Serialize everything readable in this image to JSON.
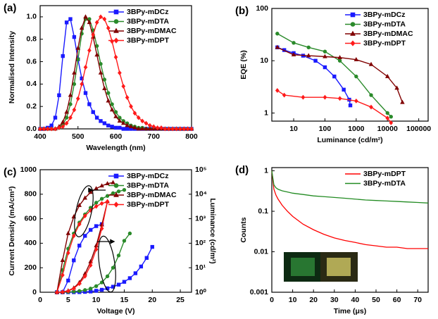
{
  "chart_data": [
    {
      "type": "line",
      "panel": "(a)",
      "x_label": "Wavelength (nm)",
      "y_label": "Normalised Intensity",
      "xlim": [
        400,
        800
      ],
      "xticks": [
        400,
        500,
        600,
        700,
        800
      ],
      "ylim": [
        0,
        1.1
      ],
      "yticks": [
        {
          "value": 0,
          "label": "0.0"
        },
        0.2,
        0.4,
        0.6,
        0.8,
        {
          "value": 1,
          "label": "1.0"
        }
      ],
      "legend": "upper right",
      "x": [
        400,
        410,
        420,
        430,
        440,
        450,
        460,
        470,
        480,
        490,
        500,
        510,
        520,
        530,
        540,
        550,
        560,
        570,
        580,
        590,
        600,
        610,
        620,
        630,
        640,
        650,
        660,
        670,
        680,
        690,
        700,
        710,
        720,
        730,
        740,
        750,
        760,
        770,
        780,
        790,
        800
      ],
      "series": [
        {
          "name": "3BPy-mDCz",
          "color": "#1a1aff",
          "marker": "square",
          "values": [
            0,
            0,
            0.01,
            0.03,
            0.1,
            0.3,
            0.65,
            0.95,
            0.98,
            0.82,
            0.62,
            0.45,
            0.32,
            0.22,
            0.15,
            0.1,
            0.07,
            0.05,
            0.03,
            0.02,
            0.01,
            0.01,
            0,
            0,
            0,
            0,
            0,
            0,
            0,
            0,
            0,
            0,
            0,
            0,
            0,
            0,
            0,
            0,
            0,
            0,
            0
          ]
        },
        {
          "name": "3BPy-mDTA",
          "color": "#2a8a2a",
          "marker": "circle",
          "values": [
            0,
            0,
            0,
            0,
            0,
            0.01,
            0.04,
            0.1,
            0.22,
            0.4,
            0.62,
            0.85,
            0.98,
            0.98,
            0.88,
            0.74,
            0.58,
            0.44,
            0.32,
            0.22,
            0.15,
            0.1,
            0.07,
            0.05,
            0.03,
            0.02,
            0.01,
            0.01,
            0,
            0,
            0,
            0,
            0,
            0,
            0,
            0,
            0,
            0,
            0,
            0,
            0
          ]
        },
        {
          "name": "3BPy-mDMAC",
          "color": "#800000",
          "marker": "triangle",
          "values": [
            0,
            0,
            0,
            0,
            0,
            0.02,
            0.06,
            0.15,
            0.3,
            0.5,
            0.72,
            0.9,
            1,
            0.95,
            0.82,
            0.66,
            0.5,
            0.36,
            0.25,
            0.17,
            0.11,
            0.07,
            0.05,
            0.03,
            0.02,
            0.01,
            0,
            0,
            0,
            0,
            0,
            0,
            0,
            0,
            0,
            0,
            0,
            0,
            0,
            0,
            0
          ]
        },
        {
          "name": "3BPy-mDPT",
          "color": "#ff1a1a",
          "marker": "diamond",
          "values": [
            0,
            0,
            0,
            0,
            0,
            0.01,
            0.02,
            0.05,
            0.1,
            0.17,
            0.27,
            0.4,
            0.55,
            0.7,
            0.84,
            0.95,
            1,
            0.98,
            0.9,
            0.78,
            0.64,
            0.5,
            0.38,
            0.28,
            0.2,
            0.14,
            0.1,
            0.07,
            0.05,
            0.03,
            0.02,
            0.01,
            0.01,
            0,
            0,
            0,
            0,
            0,
            0,
            0,
            0
          ]
        }
      ]
    },
    {
      "type": "line",
      "panel": "(b)",
      "x_label": "Luminance (cd/m²)",
      "y_label": "EQE (%)",
      "xlog": true,
      "ylog": true,
      "xlim": [
        2,
        200000
      ],
      "xticks": [
        10,
        100,
        1000,
        10000,
        100000
      ],
      "ylim": [
        0.7,
        100
      ],
      "yticks": [
        1,
        10,
        100
      ],
      "legend": "upper right",
      "series": [
        {
          "name": "3BPy-mDCz",
          "color": "#1a1aff",
          "marker": "square",
          "x": [
            3,
            5,
            10,
            20,
            50,
            100,
            200,
            400,
            600,
            650
          ],
          "values": [
            18,
            16,
            14,
            12.5,
            10,
            7.5,
            5,
            2.8,
            1.8,
            1.4
          ]
        },
        {
          "name": "3BPy-mDTA",
          "color": "#2a8a2a",
          "marker": "circle",
          "x": [
            3,
            10,
            30,
            100,
            300,
            1000,
            3000,
            10000,
            13000
          ],
          "values": [
            33,
            22,
            18,
            15,
            10,
            5,
            2.2,
            1,
            0.85
          ]
        },
        {
          "name": "3BPy-mDMAC",
          "color": "#800000",
          "marker": "triangle",
          "x": [
            3,
            10,
            30,
            100,
            300,
            1000,
            3000,
            10000,
            20000,
            30000
          ],
          "values": [
            18,
            13,
            12.5,
            12,
            11.5,
            10.5,
            8.5,
            5,
            3,
            1.6
          ]
        },
        {
          "name": "3BPy-mDPT",
          "color": "#ff1a1a",
          "marker": "diamond",
          "x": [
            3,
            5,
            20,
            100,
            300,
            1000,
            3000,
            10000,
            13000
          ],
          "values": [
            2.7,
            2.2,
            2,
            2,
            1.9,
            1.7,
            1.3,
            0.8,
            0.65
          ]
        }
      ]
    },
    {
      "type": "line",
      "panel": "(c)",
      "x_label": "Voltage (V)",
      "y_label": "Current Density (mA/cm²)",
      "y2_label": "Luminance (cd/m²)",
      "xlim": [
        0,
        27
      ],
      "xticks": [
        0,
        5,
        10,
        15,
        20,
        25
      ],
      "ylim": [
        0,
        1000
      ],
      "yticks": [
        0,
        200,
        400,
        600,
        800,
        1000
      ],
      "y2log": true,
      "y2lim": [
        1,
        100000
      ],
      "y2ticks": [
        {
          "value": 1,
          "label": "10⁰"
        },
        {
          "value": 10,
          "label": "10¹"
        },
        {
          "value": 100,
          "label": "10²"
        },
        {
          "value": 1000,
          "label": "10³"
        },
        {
          "value": 10000,
          "label": "10⁴"
        },
        {
          "value": 100000,
          "label": "10⁵"
        }
      ],
      "legend": "upper right",
      "series": [
        {
          "name": "3BPy-mDCz",
          "color": "#1a1aff",
          "marker": "square",
          "x": [
            3,
            4,
            5,
            6,
            7,
            8,
            9,
            10,
            11,
            12,
            13,
            14,
            15,
            16,
            17,
            18,
            19,
            20
          ],
          "values": [
            0,
            0,
            0.1,
            0.5,
            1,
            3,
            6,
            12,
            20,
            32,
            45,
            62,
            85,
            115,
            155,
            210,
            280,
            370
          ],
          "luminance": [
            1,
            1,
            3,
            20,
            80,
            200,
            350,
            500,
            600,
            null,
            null,
            null,
            null,
            null,
            null,
            null,
            null,
            null
          ]
        },
        {
          "name": "3BPy-mDTA",
          "color": "#2a8a2a",
          "marker": "circle",
          "x": [
            3,
            4,
            5,
            6,
            7,
            8,
            9,
            10,
            11,
            12,
            13,
            14,
            15,
            16
          ],
          "values": [
            0,
            0.5,
            2,
            5,
            10,
            18,
            30,
            50,
            80,
            130,
            200,
            300,
            420,
            480
          ],
          "luminance": [
            1,
            8,
            60,
            250,
            700,
            1500,
            2800,
            4500,
            6500,
            8500,
            11000,
            13000,
            15000,
            null
          ]
        },
        {
          "name": "3BPy-mDMAC",
          "color": "#800000",
          "marker": "triangle",
          "x": [
            3,
            4,
            5,
            6,
            7,
            8,
            9,
            10,
            11,
            12,
            13
          ],
          "values": [
            0,
            3,
            12,
            35,
            80,
            150,
            250,
            380,
            550,
            740,
            null
          ],
          "luminance": [
            1,
            20,
            250,
            1200,
            3500,
            7000,
            12000,
            17000,
            22000,
            27000,
            30000
          ]
        },
        {
          "name": "3BPy-mDPT",
          "color": "#ff1a1a",
          "marker": "diamond",
          "x": [
            3,
            4,
            5,
            6,
            7,
            8,
            9,
            10,
            11,
            12
          ],
          "values": [
            0,
            2,
            10,
            30,
            70,
            130,
            220,
            350,
            520,
            740
          ],
          "luminance": [
            1,
            5,
            40,
            200,
            600,
            1300,
            2200,
            3200,
            4200,
            5000
          ]
        }
      ]
    },
    {
      "type": "line",
      "panel": "(d)",
      "x_label": "Time (μs)",
      "y_label": "Counts",
      "ylog": true,
      "xlim": [
        0,
        75
      ],
      "xticks": [
        0,
        10,
        20,
        30,
        40,
        50,
        60,
        70
      ],
      "ylim": [
        0.001,
        1.2
      ],
      "yticks": [
        0.001,
        0.01,
        0.1,
        1
      ],
      "legend": "upper right",
      "x": [
        0,
        1,
        2,
        3,
        5,
        7.5,
        10,
        15,
        20,
        25,
        30,
        35,
        40,
        45,
        50,
        55,
        60,
        65,
        70,
        75
      ],
      "series": [
        {
          "name": "3BPy-mDPT",
          "color": "#ff0000",
          "marker": "none",
          "values": [
            1,
            0.35,
            0.25,
            0.2,
            0.14,
            0.1,
            0.075,
            0.048,
            0.035,
            0.027,
            0.022,
            0.019,
            0.017,
            0.015,
            0.014,
            0.013,
            0.013,
            0.012,
            0.012,
            0.012
          ]
        },
        {
          "name": "3BPy-mDTA",
          "color": "#228b22",
          "marker": "none",
          "values": [
            1,
            0.45,
            0.38,
            0.35,
            0.32,
            0.3,
            0.28,
            0.26,
            0.24,
            0.23,
            0.22,
            0.21,
            0.2,
            0.19,
            0.185,
            0.18,
            0.175,
            0.17,
            0.165,
            0.16
          ]
        }
      ]
    }
  ]
}
